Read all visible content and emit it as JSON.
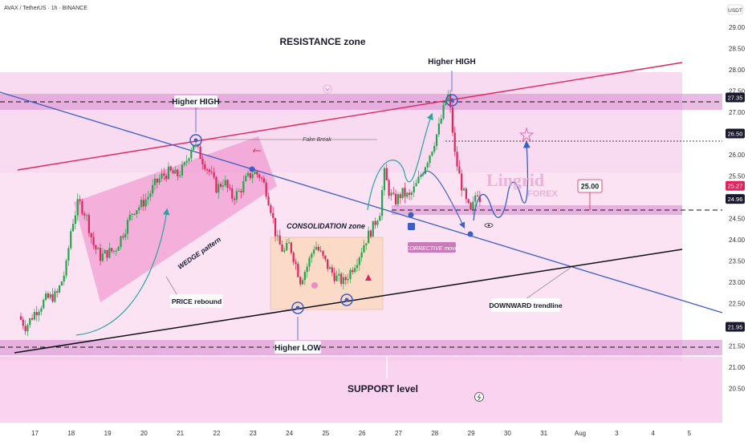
{
  "header": {
    "symbol_line": "AVAX / TetherUS · 1h · BINANCE",
    "currency": "USDT"
  },
  "watermark": {
    "brand": "Lingrid",
    "sub": "FOREX"
  },
  "labels": {
    "resistance_zone": "RESISTANCE zone",
    "higher_high_1": "Higher HIGH",
    "higher_high_2": "Higher HIGH",
    "fake_break": "Fake Break",
    "wedge": "WEDGE pattern",
    "consolidation": "CONSOLIDATION zone",
    "price_rebound": "PRICE rebound",
    "higher_low": "Higher LOW",
    "downward_trendline": "DOWNWARD trendline",
    "corrective_move": "CORRECTIVE move",
    "support_level": "SUPPORT level",
    "target_box": "25.00"
  },
  "colors": {
    "resistance_line": "#e0245e",
    "downtrend_line": "#3b5fc7",
    "support_line": "#101018",
    "zone_fill": "#d98fd0",
    "chart_bg": "#fbe3f4",
    "candle_up": "#22a64a",
    "candle_down": "#e0245e",
    "label_price": "#1a1a2e"
  },
  "chart_data": {
    "type": "candlestick",
    "title": "AVAX / TetherUS · 1h · BINANCE",
    "yaxis": {
      "unit": "USDT",
      "ticks": [
        "29.00",
        "28.50",
        "28.00",
        "27.50",
        "27.00",
        "26.50",
        "26.00",
        "25.50",
        "25.00",
        "24.50",
        "24.00",
        "23.50",
        "23.00",
        "22.50",
        "22.00",
        "21.50",
        "21.00",
        "20.50"
      ],
      "range": [
        20.25,
        29.3
      ]
    },
    "xaxis": {
      "ticks": [
        "17",
        "18",
        "19",
        "20",
        "21",
        "22",
        "23",
        "24",
        "25",
        "26",
        "27",
        "28",
        "29",
        "30",
        "31",
        "Aug",
        "3",
        "4",
        "5"
      ]
    },
    "price_labels": [
      {
        "value": "27.35",
        "y": 27.35,
        "style": "dark"
      },
      {
        "value": "26.50",
        "y": 26.5,
        "style": "dark"
      },
      {
        "value": "25.27",
        "y": 25.27,
        "style": "pink"
      },
      {
        "value": "24.96",
        "y": 24.96,
        "style": "dark"
      },
      {
        "value": "21.95",
        "y": 21.95,
        "style": "dark"
      }
    ],
    "levels": [
      {
        "name": "resistance",
        "value": 27.35
      },
      {
        "name": "fake-break",
        "value": 26.5
      },
      {
        "name": "current",
        "value": 24.96
      },
      {
        "name": "support",
        "value": 21.95
      }
    ],
    "candle_keypoints": [
      [
        16.55,
        22.2
      ],
      [
        16.75,
        21.95
      ],
      [
        17.0,
        22.3
      ],
      [
        17.3,
        22.6
      ],
      [
        17.6,
        22.7
      ],
      [
        17.85,
        23.3
      ],
      [
        18.0,
        24.3
      ],
      [
        18.2,
        24.9
      ],
      [
        18.4,
        24.6
      ],
      [
        18.6,
        23.9
      ],
      [
        18.8,
        23.6
      ],
      [
        19.0,
        23.7
      ],
      [
        19.2,
        23.75
      ],
      [
        19.5,
        24.3
      ],
      [
        19.7,
        24.7
      ],
      [
        19.9,
        24.8
      ],
      [
        20.1,
        25.0
      ],
      [
        20.3,
        25.3
      ],
      [
        20.5,
        25.5
      ],
      [
        20.7,
        25.6
      ],
      [
        20.9,
        25.5
      ],
      [
        21.1,
        25.7
      ],
      [
        21.35,
        26.3
      ],
      [
        21.6,
        25.9
      ],
      [
        21.8,
        25.6
      ],
      [
        22.0,
        25.2
      ],
      [
        22.2,
        25.4
      ],
      [
        22.4,
        25.0
      ],
      [
        22.6,
        25.1
      ],
      [
        22.8,
        25.4
      ],
      [
        23.0,
        25.6
      ],
      [
        23.2,
        25.5
      ],
      [
        23.35,
        25.2
      ],
      [
        23.5,
        24.7
      ],
      [
        23.65,
        24.0
      ],
      [
        23.85,
        23.7
      ],
      [
        24.0,
        23.9
      ],
      [
        24.15,
        23.5
      ],
      [
        24.3,
        23.05
      ],
      [
        24.5,
        23.4
      ],
      [
        24.7,
        23.9
      ],
      [
        24.9,
        23.6
      ],
      [
        25.1,
        23.3
      ],
      [
        25.3,
        23.1
      ],
      [
        25.5,
        23.0
      ],
      [
        25.7,
        23.3
      ],
      [
        25.9,
        23.6
      ],
      [
        26.1,
        24.0
      ],
      [
        26.3,
        24.3
      ],
      [
        26.5,
        24.7
      ],
      [
        26.6,
        25.6
      ],
      [
        26.75,
        25.1
      ],
      [
        26.9,
        24.9
      ],
      [
        27.1,
        25.1
      ],
      [
        27.3,
        25.0
      ],
      [
        27.5,
        25.3
      ],
      [
        27.7,
        25.7
      ],
      [
        27.9,
        26.1
      ],
      [
        28.1,
        26.6
      ],
      [
        28.25,
        27.1
      ],
      [
        28.35,
        27.45
      ],
      [
        28.45,
        26.9
      ],
      [
        28.55,
        26.0
      ],
      [
        28.7,
        25.4
      ],
      [
        28.85,
        24.9
      ],
      [
        29.0,
        24.6
      ],
      [
        29.15,
        25.2
      ],
      [
        29.25,
        24.96
      ]
    ]
  }
}
